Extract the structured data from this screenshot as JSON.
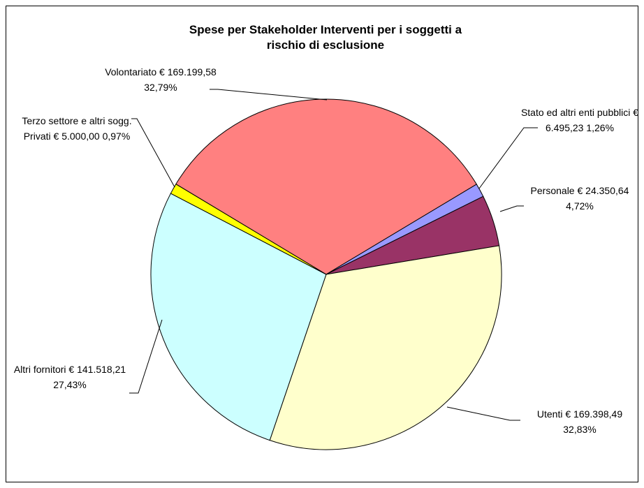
{
  "chart_data": {
    "type": "pie",
    "title": "Spese per Stakeholder Interventi per i soggetti a rischio di esclusione",
    "categories": [
      "Volontariato",
      "Stato ed altri enti pubblici",
      "Personale",
      "Utenti",
      "Altri fornitori",
      "Terzo settore e altri sogg. Privati"
    ],
    "values": [
      169199.58,
      6495.23,
      24350.64,
      169398.49,
      141518.21,
      5000.0
    ],
    "value_labels": [
      "€ 169.199,58 32,79%",
      "€ 6.495,23 1,26%",
      "€ 24.350,64 4,72%",
      "€ 169.398,49 32,83%",
      "€ 141.518,21 27,43%",
      "€ 5.000,00 0,97%"
    ],
    "colors": [
      "#FF8080",
      "#9999FF",
      "#993366",
      "#FFFFCC",
      "#CCFFFF",
      "#FFFF00"
    ]
  }
}
